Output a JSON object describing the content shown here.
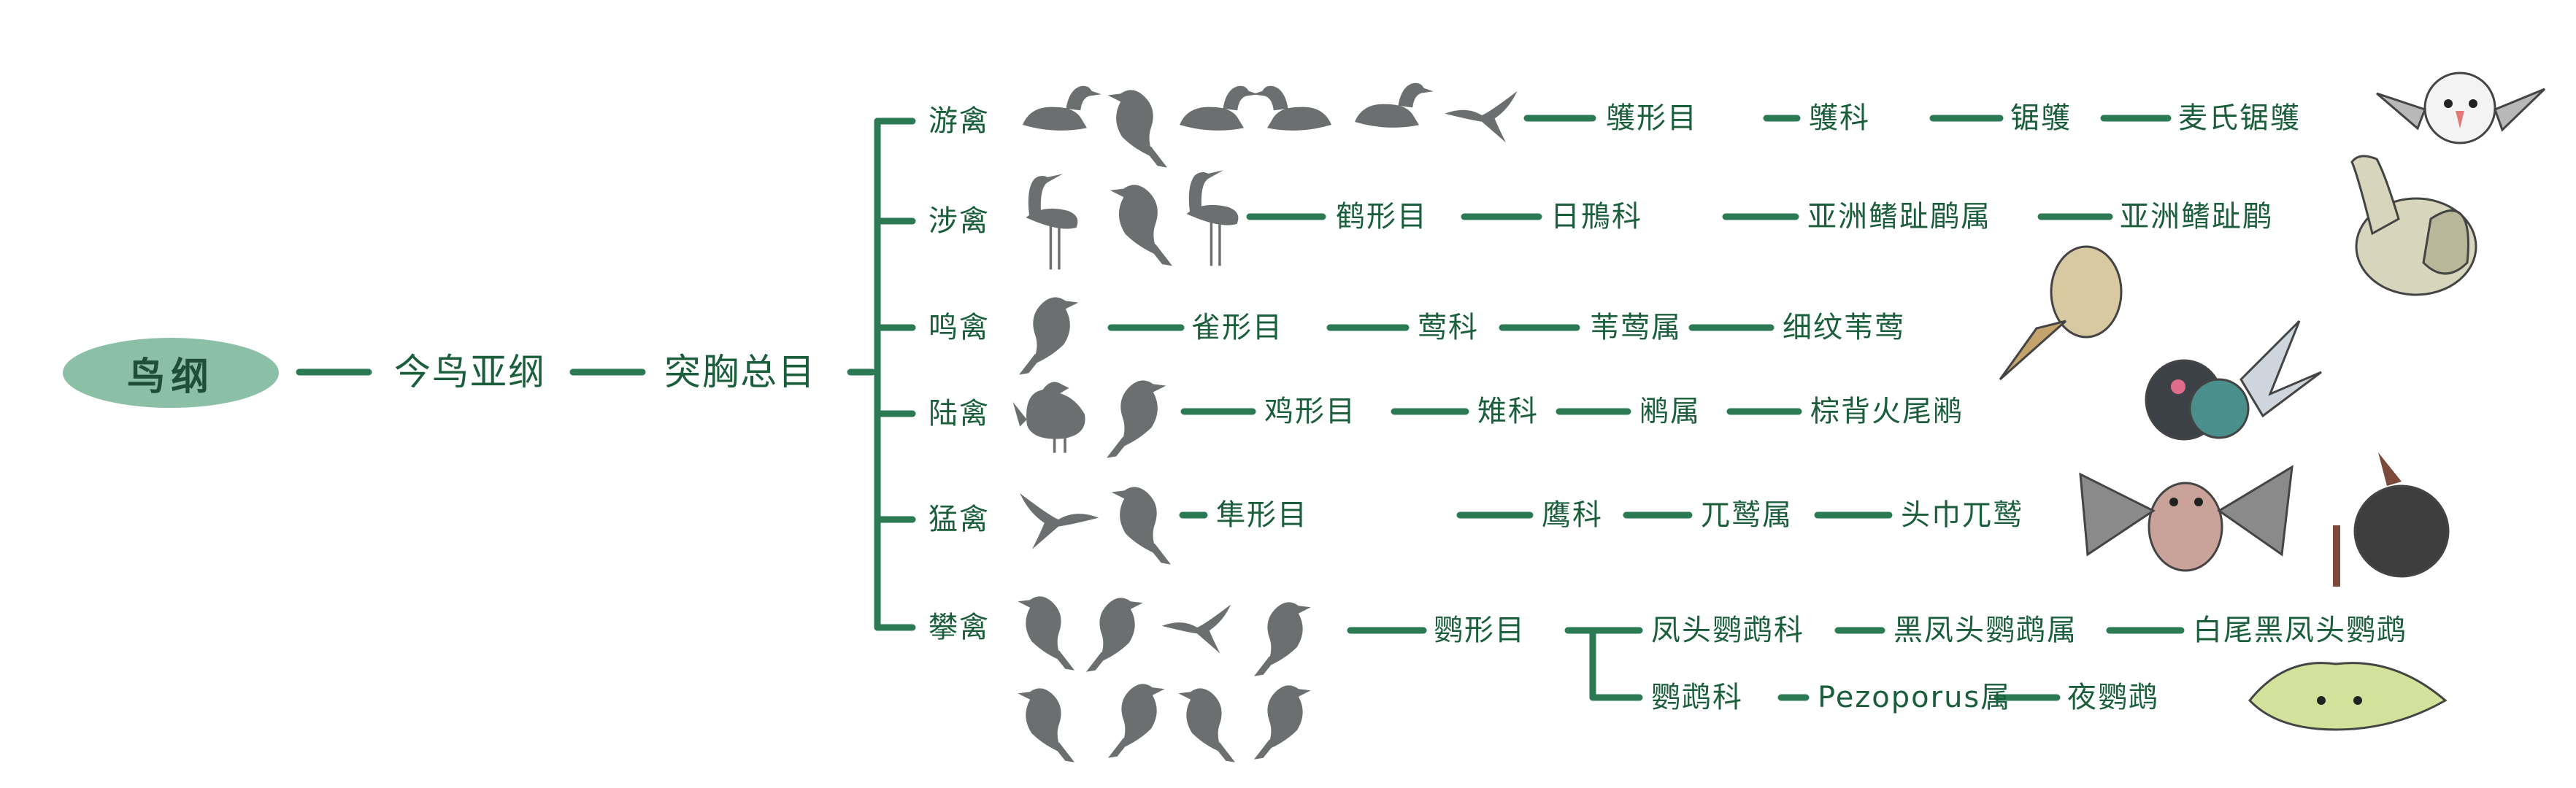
{
  "colors": {
    "line": "#2b7a54",
    "text": "#1b5e3b",
    "root_fill": "#8bbfa6",
    "silhouette": "#6b6f70"
  },
  "root": "鸟纲",
  "subclass": "今鸟亚纲",
  "superorder": "突胸总目",
  "groups": [
    {
      "name": "游禽",
      "path": [
        "鹱形目",
        "鹱科",
        "锯鹱",
        "麦氏锯鹱"
      ]
    },
    {
      "name": "涉禽",
      "path": [
        "鹤形目",
        "日鳽科",
        "亚洲鳍趾鹛属",
        "亚洲鳍趾鹛"
      ]
    },
    {
      "name": "鸣禽",
      "path": [
        "雀形目",
        "莺科",
        "苇莺属",
        "细纹苇莺"
      ]
    },
    {
      "name": "陆禽",
      "path": [
        "鸡形目",
        "雉科",
        "鹇属",
        "棕背火尾鹇"
      ]
    },
    {
      "name": "猛禽",
      "path": [
        "隼形目",
        "鹰科",
        "兀鹫属",
        "头巾兀鹫"
      ]
    },
    {
      "name": "攀禽",
      "order": "鹦形目",
      "branches": [
        [
          "凤头鹦鹉科",
          "黑凤头鹦鹉属",
          "白尾黑凤头鹦鹉"
        ],
        [
          "鹦鹉科",
          "Pezoporus属",
          "夜鹦鹉"
        ]
      ]
    }
  ],
  "icons": [
    "swimming-bird-silhouettes",
    "wading-bird-silhouettes",
    "songbird-silhouette",
    "landfowl-silhouettes",
    "raptor-silhouettes",
    "climbing-bird-silhouettes",
    "cartoon-petrel",
    "cartoon-goose",
    "cartoon-warbler",
    "cartoon-pheasant",
    "cartoon-owl",
    "cartoon-vulture",
    "cartoon-kakapo"
  ]
}
